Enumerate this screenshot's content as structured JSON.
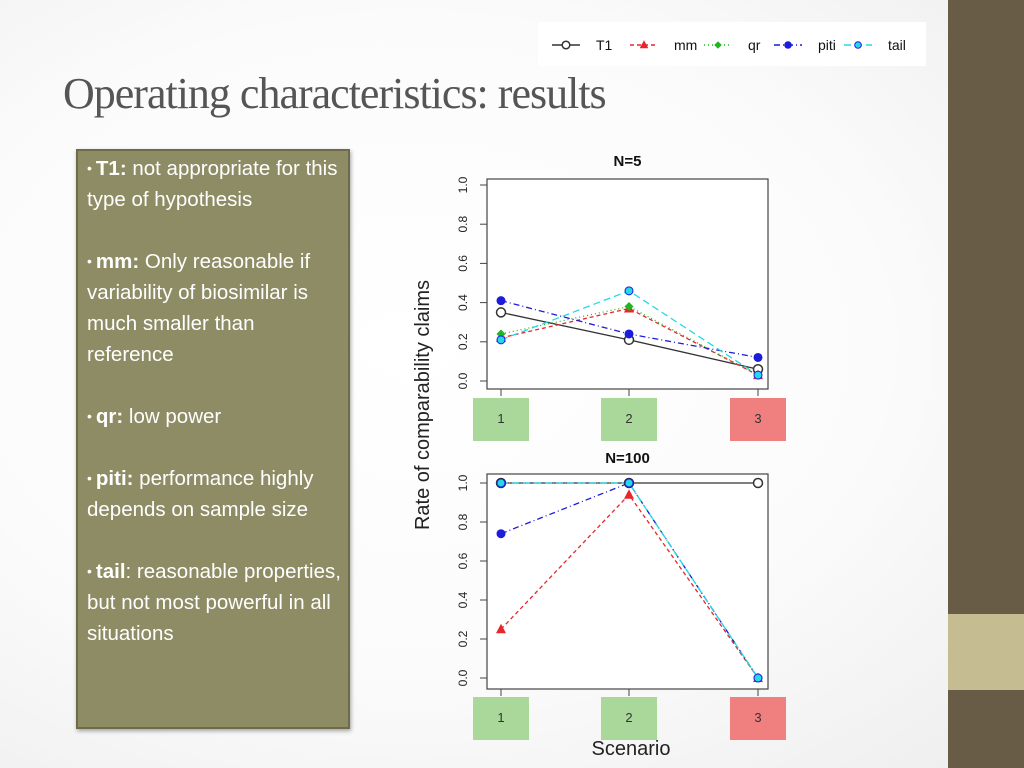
{
  "slide": {
    "title": "Operating characteristics: results"
  },
  "bullets": [
    {
      "term": "T1:",
      "text": " not appropriate for this type  of hypothesis"
    },
    {
      "term": "mm:",
      "text": " Only reasonable if variability of biosimilar is much smaller than reference"
    },
    {
      "term": "qr:",
      "text": " low power"
    },
    {
      "term": "piti:",
      "text": " performance highly depends on sample size"
    },
    {
      "term": "tail",
      "text": ": reasonable properties, but not most powerful in all situations"
    }
  ],
  "chart_data": {
    "type": "line",
    "ylabel": "Rate of comparability claims",
    "xlabel": "Scenario",
    "categories": [
      "1",
      "2",
      "3"
    ],
    "category_colors": [
      "#a9d89a",
      "#a9d89a",
      "#f08080"
    ],
    "ylim": [
      0,
      1
    ],
    "yticks": [
      "0.0",
      "0.2",
      "0.4",
      "0.6",
      "0.8",
      "1.0"
    ],
    "legend_position": "top-right",
    "series_styles": [
      {
        "name": "T1",
        "color": "#333333",
        "marker": "circle-open",
        "dash": "none"
      },
      {
        "name": "mm",
        "color": "#e8262a",
        "marker": "triangle",
        "dash": "4,3"
      },
      {
        "name": "qr",
        "color": "#22b522",
        "marker": "diamond",
        "dash": "1,3"
      },
      {
        "name": "piti",
        "color": "#1c1cdc",
        "marker": "circle",
        "dash": "6,3,1,3"
      },
      {
        "name": "tail",
        "color": "#25d8e8",
        "marker": "circle-cyan",
        "dash": "7,4"
      }
    ],
    "panels": [
      {
        "title": "N=5",
        "series": [
          {
            "name": "T1",
            "values": [
              0.35,
              0.21,
              0.06
            ]
          },
          {
            "name": "mm",
            "values": [
              0.22,
              0.37,
              0.03
            ]
          },
          {
            "name": "qr",
            "values": [
              0.24,
              0.38,
              0.03
            ]
          },
          {
            "name": "piti",
            "values": [
              0.41,
              0.24,
              0.12
            ]
          },
          {
            "name": "tail",
            "values": [
              0.21,
              0.46,
              0.03
            ]
          }
        ]
      },
      {
        "title": "N=100",
        "series": [
          {
            "name": "T1",
            "values": [
              1.0,
              1.0,
              1.0
            ]
          },
          {
            "name": "mm",
            "values": [
              0.25,
              0.94,
              0.0
            ]
          },
          {
            "name": "qr",
            "values": [
              1.0,
              1.0,
              0.0
            ]
          },
          {
            "name": "piti",
            "values": [
              0.74,
              1.0,
              0.0
            ]
          },
          {
            "name": "tail",
            "values": [
              1.0,
              1.0,
              0.0
            ]
          }
        ]
      }
    ]
  }
}
